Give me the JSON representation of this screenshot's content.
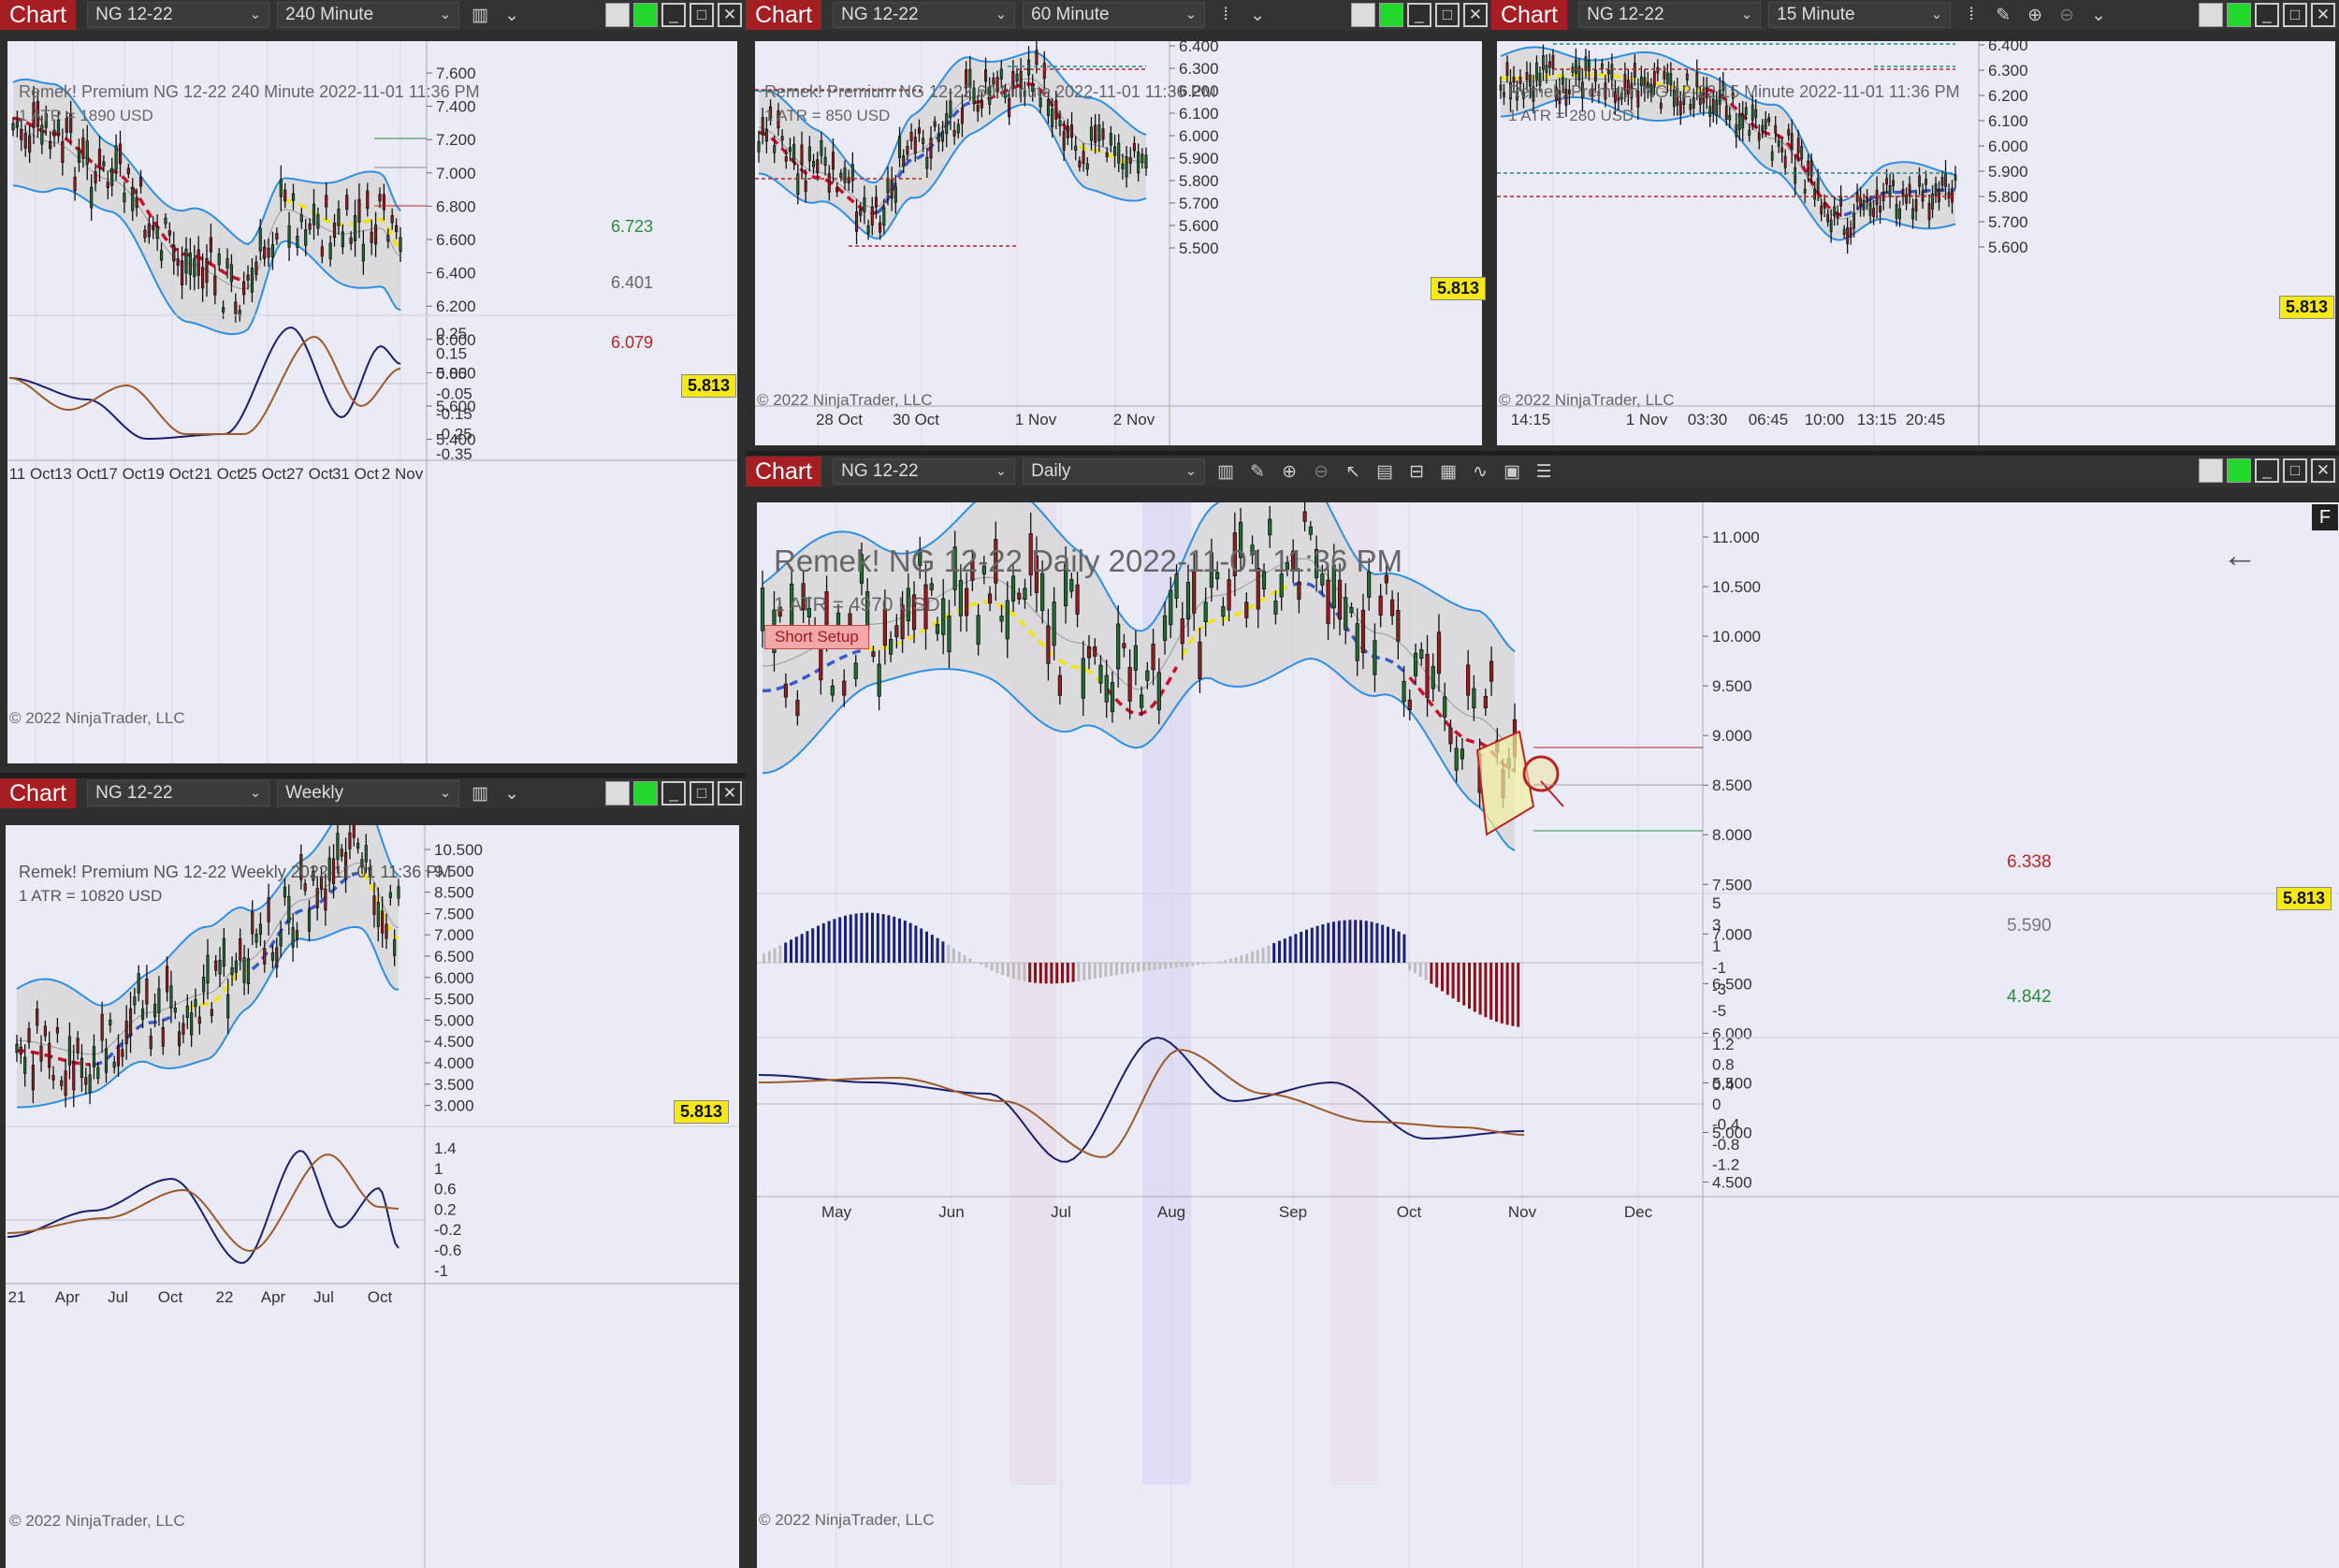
{
  "symbol": "NG 12-22",
  "chart_tab": "Chart",
  "copyright": "© 2022 NinjaTrader, LLC",
  "last_price": "5.813",
  "colors": {
    "bull": "#1f6f2f",
    "bear": "#9b1c1c",
    "upper_band": "#2e8fe0",
    "red_dash": "#c8102e",
    "blue_dash": "#3a5cc8",
    "yellow_dash": "#f2e600",
    "macd_pos": "#18207a",
    "macd_neg": "#8b0f14",
    "macd_grey": "#bdbdbd"
  },
  "charts": {
    "c240": {
      "interval": "240 Minute",
      "header": "Remek!  Premium  NG 12-22  240 Minute  2022-11-01 11:36 PM",
      "atr": "1 ATR = 1890 USD",
      "price_ticks": [
        "7.600",
        "7.400",
        "7.200",
        "7.000",
        "6.800",
        "6.600",
        "6.400",
        "6.200",
        "6.000",
        "5.800",
        "5.600",
        "5.400"
      ],
      "osc_ticks": [
        "0.25",
        "0.15",
        "0.05",
        "-0.05",
        "-0.15",
        "-0.25",
        "-0.35"
      ],
      "x_ticks": [
        "11 Oct",
        "13 Oct",
        "17 Oct",
        "19 Oct",
        "21 Oct",
        "25 Oct",
        "27 Oct",
        "31 Oct",
        "2 Nov"
      ],
      "levels": [
        "6.723",
        "6.401",
        "6.079"
      ]
    },
    "c60": {
      "interval": "60 Minute",
      "header": "Remek!  Premium  NG 12-22  60 Minute  2022-11-01 11:36 PM",
      "atr": "1 ATR = 850 USD",
      "price_ticks": [
        "6.400",
        "6.300",
        "6.200",
        "6.100",
        "6.000",
        "5.900",
        "5.800",
        "5.700",
        "5.600",
        "5.500"
      ],
      "x_ticks": [
        "28 Oct",
        "30 Oct",
        "1 Nov",
        "2 Nov"
      ]
    },
    "c15": {
      "interval": "15 Minute",
      "header": "Remek!  Premium  NG 12-22  15 Minute  2022-11-01 11:36 PM",
      "atr": "1 ATR = 280 USD",
      "price_ticks": [
        "6.400",
        "6.300",
        "6.200",
        "6.100",
        "6.000",
        "5.900",
        "5.800",
        "5.700",
        "5.600"
      ],
      "x_ticks": [
        "14:15",
        "1 Nov",
        "03:30",
        "06:45",
        "10:00",
        "13:15",
        "20:45"
      ]
    },
    "weekly": {
      "interval": "Weekly",
      "header": "Remek!  Premium  NG 12-22  Weekly  2022-11-01 11:36 PM",
      "atr": "1 ATR = 10820 USD",
      "price_ticks": [
        "10.500",
        "9.500",
        "8.500",
        "7.500",
        "7.000",
        "6.500",
        "6.000",
        "5.500",
        "5.000",
        "4.500",
        "4.000",
        "3.500",
        "3.000"
      ],
      "osc_ticks": [
        "1.4",
        "1",
        "0.6",
        "0.2",
        "-0.2",
        "-0.6",
        "-1"
      ],
      "x_ticks": [
        "21",
        "Apr",
        "Jul",
        "Oct",
        "22",
        "Apr",
        "Jul",
        "Oct"
      ]
    },
    "daily": {
      "interval": "Daily",
      "header": "Remek!  NG 12-22  Daily  2022-11-01 11:36 PM",
      "atr": "1 ATR = 4970 USD",
      "setup": "Short Setup",
      "f_label": "F",
      "price_ticks": [
        "11.000",
        "10.500",
        "10.000",
        "9.500",
        "9.000",
        "8.500",
        "8.000",
        "7.500",
        "7.000",
        "6.500",
        "6.000",
        "5.500",
        "5.000",
        "4.500"
      ],
      "macd_ticks": [
        "5",
        "3",
        "1",
        "-1",
        "-3",
        "-5"
      ],
      "osc_ticks": [
        "1.2",
        "0.8",
        "0.4",
        "0",
        "-0.4",
        "-0.8",
        "-1.2"
      ],
      "x_ticks": [
        "May",
        "Jun",
        "Jul",
        "Aug",
        "Sep",
        "Oct",
        "Nov",
        "Dec"
      ],
      "levels": [
        "6.338",
        "5.590",
        "4.842"
      ]
    }
  }
}
